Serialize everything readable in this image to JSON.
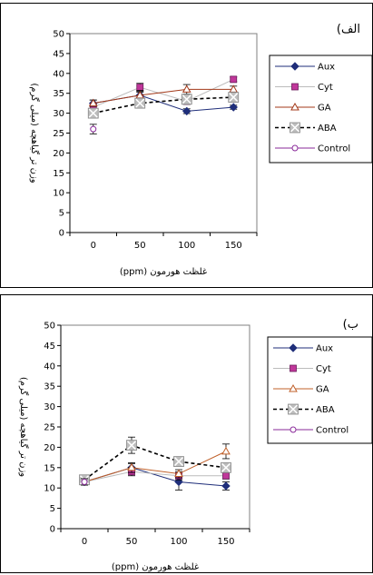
{
  "chart_data": [
    {
      "type": "line",
      "panel_label": "(الف",
      "xlabel": "غلظت هورمون (ppm)",
      "ylabel": "وزن تر گیاهچه (میلی گرم)",
      "categories": [
        "0",
        "50",
        "100",
        "150"
      ],
      "ylim": [
        0,
        50
      ],
      "yticks": [
        0,
        5,
        10,
        15,
        20,
        25,
        30,
        35,
        40,
        45,
        50
      ],
      "legend_position": "right",
      "series": [
        {
          "name": "Aux",
          "values": [
            32.5,
            34.5,
            30.5,
            31.5
          ],
          "errors": [
            0.8,
            0.8,
            0.6,
            0.5
          ],
          "color": "#1f2e7a",
          "marker": "diamond",
          "dash": "solid"
        },
        {
          "name": "Cyt",
          "values": [
            31.5,
            36.5,
            33.0,
            38.5
          ],
          "errors": [
            0.7,
            1.0,
            0.8,
            0.6
          ],
          "color": "#bcbcbc",
          "marker": "square",
          "dash": "solid"
        },
        {
          "name": "GA",
          "values": [
            32.5,
            34.5,
            36.0,
            36.0
          ],
          "errors": [
            0.8,
            1.2,
            1.2,
            0.8
          ],
          "color": "#a33a1a",
          "marker": "triangle",
          "dash": "solid"
        },
        {
          "name": "ABA",
          "values": [
            30.0,
            32.5,
            33.5,
            34.0
          ],
          "errors": [
            1.0,
            0.8,
            0.6,
            0.6
          ],
          "color": "#000000",
          "marker": "xsquare",
          "dash": "dashed"
        },
        {
          "name": "Control",
          "values": [
            26.0,
            null,
            null,
            null
          ],
          "errors": [
            1.2,
            null,
            null,
            null
          ],
          "color": "#8a2a9a",
          "marker": "circle",
          "dash": "solid"
        }
      ]
    },
    {
      "type": "line",
      "panel_label": "(ب",
      "xlabel": "غلظت هورمون (ppm)",
      "ylabel": "وزن تر گیاهچه (میلی گرم)",
      "categories": [
        "0",
        "50",
        "100",
        "150"
      ],
      "ylim": [
        0,
        50
      ],
      "yticks": [
        0,
        5,
        10,
        15,
        20,
        25,
        30,
        35,
        40,
        45,
        50
      ],
      "legend_position": "right",
      "series": [
        {
          "name": "Aux",
          "values": [
            11.5,
            15.0,
            11.5,
            10.5
          ],
          "errors": [
            0.8,
            1.0,
            2.0,
            1.0
          ],
          "color": "#1f2e7a",
          "marker": "diamond",
          "dash": "solid"
        },
        {
          "name": "Cyt",
          "values": [
            11.5,
            14.0,
            13.0,
            13.0
          ],
          "errors": [
            0.8,
            1.0,
            1.0,
            0.8
          ],
          "color": "#bcbcbc",
          "marker": "square",
          "dash": "solid"
        },
        {
          "name": "GA",
          "values": [
            11.5,
            15.0,
            13.5,
            19.0
          ],
          "errors": [
            0.8,
            1.2,
            1.0,
            1.8
          ],
          "color": "#c0602a",
          "marker": "triangle",
          "dash": "solid"
        },
        {
          "name": "ABA",
          "values": [
            12.0,
            20.5,
            16.5,
            15.0
          ],
          "errors": [
            0.8,
            2.0,
            0.8,
            1.2
          ],
          "color": "#000000",
          "marker": "xsquare",
          "dash": "dashed"
        },
        {
          "name": "Control",
          "values": [
            11.5,
            null,
            null,
            null
          ],
          "errors": [
            0.8,
            null,
            null,
            null
          ],
          "color": "#8a2a9a",
          "marker": "circle",
          "dash": "solid"
        }
      ]
    }
  ]
}
